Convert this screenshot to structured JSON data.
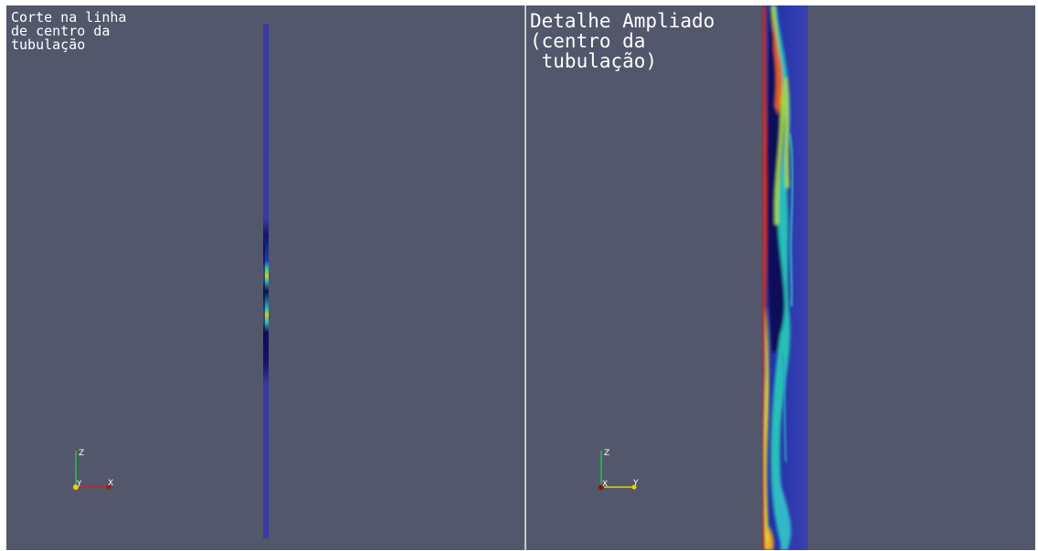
{
  "app": {
    "colors": {
      "background": "#52576b",
      "splitter": "#c8c8cc",
      "caption": "#ffffff",
      "pipe_base": "#3a3aa8"
    }
  },
  "views": {
    "left": {
      "caption": "Corte na linha\nde centro da\ntubulação",
      "axes": {
        "vertical": "Z",
        "depth": "Y",
        "horizontal": "X"
      }
    },
    "right": {
      "caption": "Detalhe Ampliado\n(centro da\n tubulação)",
      "axes": {
        "vertical": "Z",
        "depth": "X",
        "horizontal": "Y"
      }
    }
  }
}
